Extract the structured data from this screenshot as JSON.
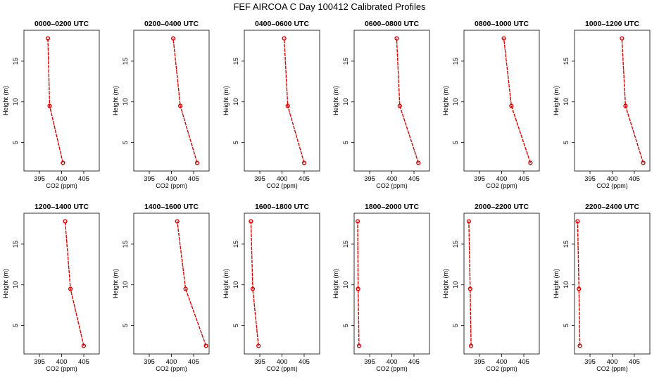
{
  "title": "FEF AIRCOA C  Day 100412  Calibrated Profiles",
  "chart_data": {
    "type": "line",
    "xlabel": "CO2 (ppm)",
    "ylabel": "Height (m)",
    "xlim": [
      391.5,
      408.5
    ],
    "ylim": [
      1.5,
      18.8
    ],
    "xticks": [
      395,
      400,
      405
    ],
    "yticks": [
      5,
      10,
      15
    ],
    "heights": [
      2.5,
      9.5,
      17.8
    ],
    "color": "#e00000",
    "panels": [
      {
        "title": "0000–0200 UTC",
        "co2": [
          400.3,
          397.3,
          396.9
        ]
      },
      {
        "title": "0200–0400 UTC",
        "co2": [
          405.8,
          402.0,
          400.4
        ]
      },
      {
        "title": "0400–0600 UTC",
        "co2": [
          405.0,
          401.3,
          400.5
        ]
      },
      {
        "title": "0600–0800 UTC",
        "co2": [
          406.0,
          401.8,
          401.1
        ]
      },
      {
        "title": "0800–1000 UTC",
        "co2": [
          406.5,
          402.2,
          400.5
        ]
      },
      {
        "title": "1000–1200 UTC",
        "co2": [
          407.0,
          403.0,
          402.2
        ]
      },
      {
        "title": "1200–1400 UTC",
        "co2": [
          405.0,
          402.0,
          400.8
        ]
      },
      {
        "title": "1400–1600 UTC",
        "co2": [
          407.8,
          403.2,
          401.3
        ]
      },
      {
        "title": "1600–1800 UTC",
        "co2": [
          394.7,
          393.4,
          393.0
        ]
      },
      {
        "title": "1800–2000 UTC",
        "co2": [
          392.6,
          392.4,
          392.3
        ]
      },
      {
        "title": "2000–2200 UTC",
        "co2": [
          393.1,
          392.9,
          392.6
        ]
      },
      {
        "title": "2200–2400 UTC",
        "co2": [
          392.7,
          392.5,
          392.2
        ]
      }
    ]
  }
}
